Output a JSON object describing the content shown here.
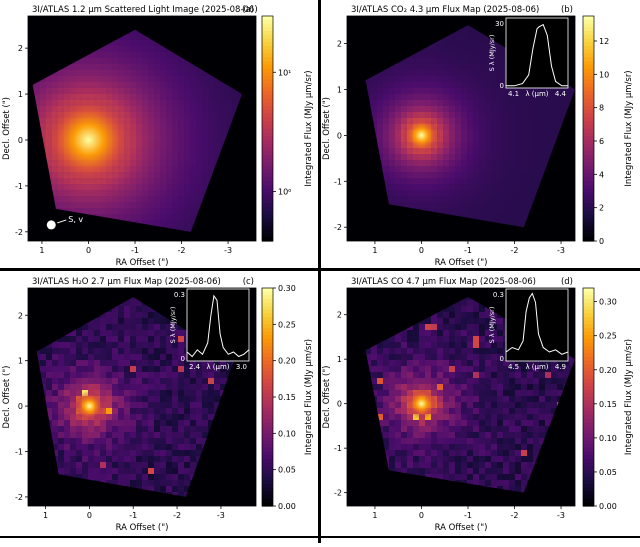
{
  "figure": {
    "bg": "#ffffff",
    "plot_bg": "#000004"
  },
  "colormap": [
    "#000004",
    "#1b0c41",
    "#4a0c6b",
    "#781c6d",
    "#a52c60",
    "#cf4446",
    "#ed6925",
    "#fb9b06",
    "#f7d13d",
    "#fcffa4"
  ],
  "chart_data": [
    {
      "type": "heatmap",
      "title": "3I/ATLAS 1.2 μm Scattered Light Image (2025-08-06)",
      "panel_label": "(a)",
      "xlabel": "RA Offset (\")",
      "ylabel": "Decl. Offset (\")",
      "xlim": [
        1.3,
        -3.6
      ],
      "ylim": [
        -2.2,
        2.7
      ],
      "xticks": [
        1,
        0,
        -1,
        -2,
        -3
      ],
      "yticks": [
        -2,
        -1,
        0,
        1,
        2
      ],
      "colorbar": {
        "label": "Integrated Flux (MJy μm/sr)",
        "scale": "log",
        "ticks": [
          "10¹",
          "10⁰"
        ],
        "tick_pos": [
          0.25,
          0.78
        ]
      },
      "nucleus": [
        0,
        0
      ],
      "grid": false,
      "annotations": [
        {
          "text": "S, v",
          "at": [
            0.8,
            -1.85
          ]
        }
      ],
      "inset": null
    },
    {
      "type": "heatmap",
      "title": "3I/ATLAS CO₂ 4.3 μm Flux Map (2025-08-06)",
      "panel_label": "(b)",
      "xlabel": "RA Offset (\")",
      "ylabel": "Decl. Offset (\")",
      "xlim": [
        1.6,
        -3.3
      ],
      "ylim": [
        -2.3,
        2.6
      ],
      "xticks": [
        1,
        0,
        -1,
        -2,
        -3
      ],
      "yticks": [
        -2,
        -1,
        0,
        1,
        2
      ],
      "colorbar": {
        "label": "Integrated Flux (MJy μm/sr)",
        "scale": "linear",
        "range": [
          0,
          13.5
        ],
        "ticks": [
          0,
          2,
          4,
          6,
          8,
          10,
          12
        ]
      },
      "nucleus": [
        0,
        0
      ],
      "grid": false,
      "annotations": [],
      "inset": {
        "type": "line",
        "ylabel": "S λ (MJy/sr)",
        "xlabel": "λ (μm)",
        "xlim": [
          4.1,
          4.4
        ],
        "ylim": [
          0,
          32
        ],
        "xtick_labels": [
          "4.1",
          "4.4"
        ],
        "ytick_labels": [
          "0",
          "30"
        ],
        "x": [
          4.1,
          4.14,
          4.18,
          4.21,
          4.23,
          4.25,
          4.26,
          4.28,
          4.3,
          4.32,
          4.34,
          4.37,
          4.4
        ],
        "y": [
          1,
          1,
          2,
          6,
          18,
          27,
          28,
          29,
          24,
          10,
          3,
          1,
          1
        ]
      }
    },
    {
      "type": "heatmap",
      "title": "3I/ATLAS H₂O 2.7 μm Flux Map (2025-08-06)",
      "panel_label": "(c)",
      "xlabel": "RA Offset (\")",
      "ylabel": "Decl. Offset (\")",
      "xlim": [
        1.4,
        -3.8
      ],
      "ylim": [
        -2.2,
        2.6
      ],
      "xticks": [
        1,
        0,
        -1,
        -2,
        -3
      ],
      "yticks": [
        -2,
        -1,
        0,
        1,
        2
      ],
      "colorbar": {
        "label": "Integrated Flux (MJy μm/sr)",
        "scale": "linear",
        "range": [
          0,
          0.3
        ],
        "ticks": [
          "0.00",
          "0.05",
          "0.10",
          "0.15",
          "0.20",
          "0.25",
          "0.30"
        ]
      },
      "nucleus": [
        0,
        0
      ],
      "grid": false,
      "annotations": [],
      "inset": {
        "type": "line",
        "ylabel": "S λ (MJy/sr)",
        "xlabel": "λ (μm)",
        "xlim": [
          2.4,
          3.0
        ],
        "ylim": [
          0,
          0.32
        ],
        "xtick_labels": [
          "2.4",
          "3.0"
        ],
        "ytick_labels": [
          "0",
          "0.3"
        ],
        "x": [
          2.4,
          2.45,
          2.5,
          2.55,
          2.6,
          2.63,
          2.66,
          2.69,
          2.72,
          2.75,
          2.8,
          2.85,
          2.9,
          2.95,
          3.0
        ],
        "y": [
          0.04,
          0.02,
          0.05,
          0.03,
          0.08,
          0.2,
          0.29,
          0.27,
          0.12,
          0.06,
          0.03,
          0.04,
          0.02,
          0.03,
          0.05
        ]
      }
    },
    {
      "type": "heatmap",
      "title": "3I/ATLAS CO 4.7 μm Flux Map (2025-08-06)",
      "panel_label": "(d)",
      "xlabel": "RA Offset (\")",
      "ylabel": "Decl. Offset (\")",
      "xlim": [
        1.6,
        -3.3
      ],
      "ylim": [
        -2.3,
        2.6
      ],
      "xticks": [
        1,
        0,
        -1,
        -2,
        -3
      ],
      "yticks": [
        -2,
        -1,
        0,
        1,
        2
      ],
      "colorbar": {
        "label": "Integrated Flux (MJy μm/sr)",
        "scale": "linear",
        "range": [
          0,
          0.32
        ],
        "ticks": [
          "0.00",
          "0.05",
          "0.10",
          "0.15",
          "0.20",
          "0.25",
          "0.30"
        ]
      },
      "nucleus": [
        0,
        0
      ],
      "grid": false,
      "annotations": [],
      "inset": {
        "type": "line",
        "ylabel": "S λ (MJy/sr)",
        "xlabel": "λ (μm)",
        "xlim": [
          4.5,
          4.9
        ],
        "ylim": [
          0,
          0.32
        ],
        "xtick_labels": [
          "4.5",
          "4.9"
        ],
        "ytick_labels": [
          "0",
          "0.3"
        ],
        "x": [
          4.5,
          4.54,
          4.58,
          4.61,
          4.63,
          4.65,
          4.67,
          4.69,
          4.71,
          4.74,
          4.78,
          4.82,
          4.86,
          4.9
        ],
        "y": [
          0.04,
          0.06,
          0.05,
          0.09,
          0.22,
          0.28,
          0.3,
          0.26,
          0.12,
          0.06,
          0.04,
          0.05,
          0.03,
          0.04
        ]
      }
    }
  ]
}
